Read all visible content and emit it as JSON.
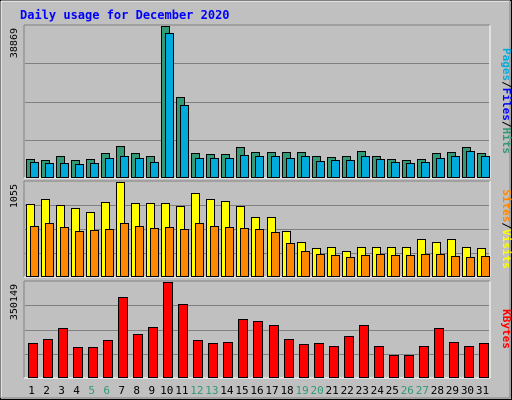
{
  "chart_data": [
    {
      "type": "bar",
      "title": "Daily usage for December 2020",
      "categories": [
        "1",
        "2",
        "3",
        "4",
        "5",
        "6",
        "7",
        "8",
        "9",
        "10",
        "11",
        "12",
        "13",
        "14",
        "15",
        "16",
        "17",
        "18",
        "19",
        "20",
        "21",
        "22",
        "23",
        "24",
        "25",
        "26",
        "27",
        "28",
        "29",
        "30",
        "31"
      ],
      "weekend_categories": [
        "5",
        "6",
        "12",
        "13",
        "19",
        "20",
        "26",
        "27"
      ],
      "ymax_label": "38869",
      "ylim": [
        0,
        38869
      ],
      "grid": true,
      "legend_parts": [
        "Pages",
        "/",
        "Files",
        "/",
        "Hits"
      ],
      "series": [
        {
          "name": "Hits",
          "color": "#339977",
          "values": [
            4700,
            4300,
            5300,
            4300,
            4600,
            6200,
            8100,
            6100,
            5300,
            38869,
            20500,
            6100,
            5900,
            6000,
            7600,
            6500,
            6500,
            6500,
            6500,
            5300,
            5200,
            5300,
            6600,
            5500,
            4700,
            4500,
            4600,
            6100,
            6500,
            7800,
            6100
          ]
        },
        {
          "name": "Files",
          "color": "#00aadd",
          "values": [
            3800,
            3600,
            3600,
            3400,
            3500,
            4900,
            5300,
            5000,
            3800,
            37000,
            18500,
            5000,
            4800,
            4900,
            5600,
            5500,
            5500,
            4800,
            5300,
            4100,
            4300,
            4500,
            5500,
            4700,
            3900,
            3700,
            3900,
            4900,
            5500,
            6700,
            5400
          ]
        }
      ]
    },
    {
      "type": "bar",
      "ymax_label": "1055",
      "ylim": [
        0,
        1055
      ],
      "grid": true,
      "legend_parts": [
        "Sites",
        "/",
        "Visits"
      ],
      "series": [
        {
          "name": "Visits",
          "color": "#ffff00",
          "values": [
            810,
            860,
            800,
            760,
            720,
            830,
            1055,
            820,
            820,
            820,
            790,
            930,
            860,
            840,
            790,
            660,
            660,
            500,
            380,
            310,
            320,
            280,
            330,
            320,
            320,
            320,
            410,
            380,
            410,
            330,
            310
          ]
        },
        {
          "name": "Sites",
          "color": "#ff8800",
          "values": [
            560,
            600,
            550,
            510,
            520,
            530,
            590,
            560,
            540,
            550,
            530,
            590,
            560,
            550,
            540,
            530,
            490,
            370,
            280,
            250,
            240,
            210,
            240,
            250,
            240,
            240,
            250,
            250,
            230,
            210,
            230
          ]
        }
      ]
    },
    {
      "type": "bar",
      "ymax_label": "350149",
      "ylim": [
        0,
        350149
      ],
      "grid": true,
      "legend_parts": [
        "KBytes"
      ],
      "series": [
        {
          "name": "KBytes",
          "color": "#ff0000",
          "values": [
            125000,
            140000,
            180000,
            110000,
            110000,
            135000,
            295000,
            160000,
            185000,
            350149,
            270000,
            135000,
            125000,
            130000,
            215000,
            205000,
            190000,
            140000,
            120000,
            125000,
            115000,
            150000,
            190000,
            115000,
            80000,
            80000,
            115000,
            180000,
            130000,
            115000,
            125000
          ]
        }
      ]
    }
  ]
}
